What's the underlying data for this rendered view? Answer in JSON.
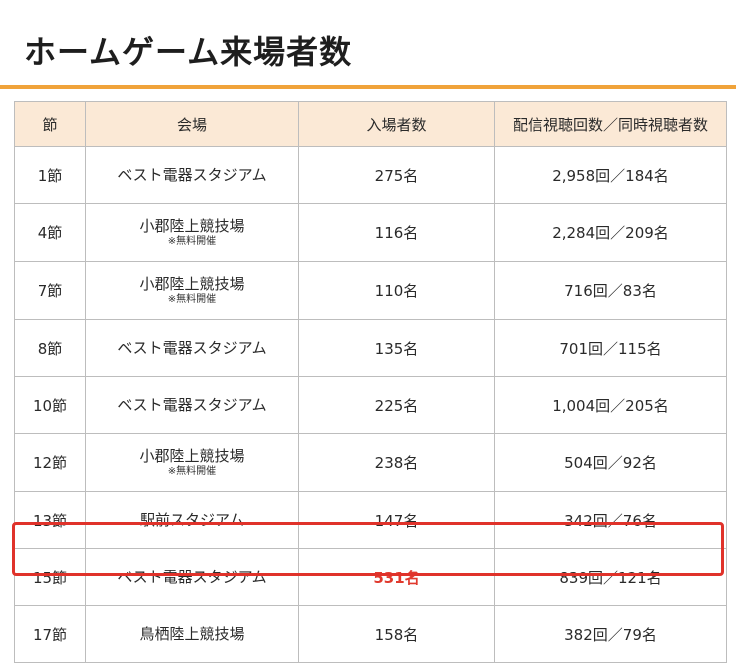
{
  "page": {
    "title": "ホームゲーム来場者数"
  },
  "table": {
    "headers": [
      "節",
      "会場",
      "入場者数",
      "配信視聴回数／同時視聴者数"
    ],
    "rows": [
      {
        "round": "1節",
        "venue": "ベスト電器スタジアム",
        "note": "",
        "attendance": "275名",
        "stream": "2,958回／184名"
      },
      {
        "round": "4節",
        "venue": "小郡陸上競技場",
        "note": "※無料開催",
        "attendance": "116名",
        "stream": "2,284回／209名"
      },
      {
        "round": "7節",
        "venue": "小郡陸上競技場",
        "note": "※無料開催",
        "attendance": "110名",
        "stream": "716回／83名"
      },
      {
        "round": "8節",
        "venue": "ベスト電器スタジアム",
        "note": "",
        "attendance": "135名",
        "stream": "701回／115名"
      },
      {
        "round": "10節",
        "venue": "ベスト電器スタジアム",
        "note": "",
        "attendance": "225名",
        "stream": "1,004回／205名"
      },
      {
        "round": "12節",
        "venue": "小郡陸上競技場",
        "note": "※無料開催",
        "attendance": "238名",
        "stream": "504回／92名"
      },
      {
        "round": "13節",
        "venue": "駅前スタジアム",
        "note": "",
        "attendance": "147名",
        "stream": "342回／76名"
      },
      {
        "round": "15節",
        "venue": "ベスト電器スタジアム",
        "note": "",
        "attendance": "531名",
        "stream": "839回／121名",
        "highlighted": true
      },
      {
        "round": "17節",
        "venue": "鳥栖陸上競技場",
        "note": "",
        "attendance": "158名",
        "stream": "382回／79名"
      }
    ]
  },
  "colors": {
    "accent_rule": "#f0a33a",
    "header_bg": "#fbe9d6",
    "highlight": "#e0322a"
  }
}
